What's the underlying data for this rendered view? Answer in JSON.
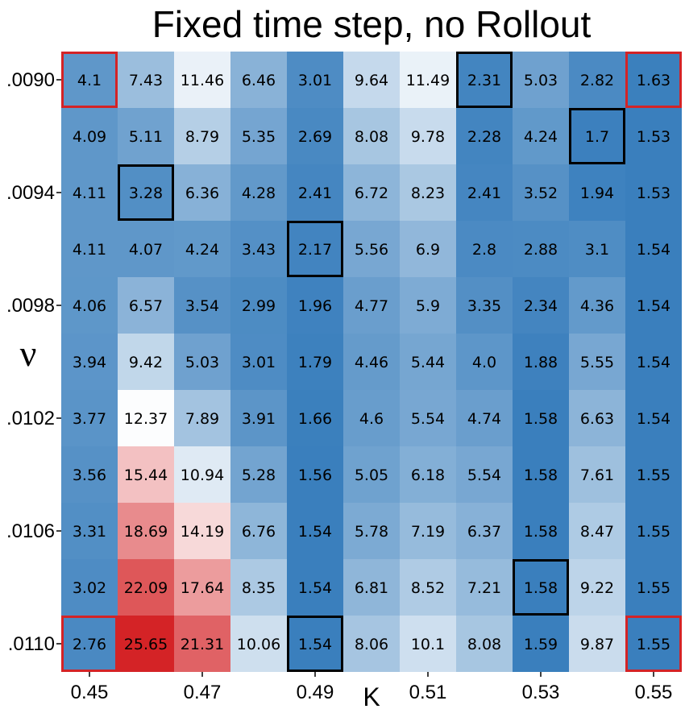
{
  "chart_data": {
    "type": "heatmap",
    "title": "Fixed time step, no Rollout",
    "xlabel": "K",
    "ylabel": "ν",
    "x_values": [
      0.45,
      0.46,
      0.47,
      0.48,
      0.49,
      0.5,
      0.51,
      0.52,
      0.53,
      0.54,
      0.55
    ],
    "y_values": [
      0.009,
      0.0092,
      0.0094,
      0.0096,
      0.0098,
      0.01,
      0.0102,
      0.0104,
      0.0106,
      0.0108,
      0.011
    ],
    "x_tick_labels": [
      "0.45",
      "0.47",
      "0.49",
      "0.51",
      "0.53",
      "0.55"
    ],
    "y_tick_labels": [
      ".0090",
      ".0094",
      ".0098",
      ".0102",
      ".0106",
      ".0110"
    ],
    "values": [
      [
        4.1,
        7.43,
        11.46,
        6.46,
        3.01,
        9.64,
        11.49,
        2.31,
        5.03,
        2.82,
        1.63
      ],
      [
        4.09,
        5.11,
        8.79,
        5.35,
        2.69,
        8.08,
        9.78,
        2.28,
        4.24,
        1.7,
        1.53
      ],
      [
        4.11,
        3.28,
        6.36,
        4.28,
        2.41,
        6.72,
        8.23,
        2.41,
        3.52,
        1.94,
        1.53
      ],
      [
        4.11,
        4.07,
        4.24,
        3.43,
        2.17,
        5.56,
        6.9,
        2.8,
        2.88,
        3.1,
        1.54
      ],
      [
        4.06,
        6.57,
        3.54,
        2.99,
        1.96,
        4.77,
        5.9,
        3.35,
        2.34,
        4.36,
        1.54
      ],
      [
        3.94,
        9.42,
        5.03,
        3.01,
        1.79,
        4.46,
        5.44,
        4.0,
        1.88,
        5.55,
        1.54
      ],
      [
        3.77,
        12.37,
        7.89,
        3.91,
        1.66,
        4.6,
        5.54,
        4.74,
        1.58,
        6.63,
        1.54
      ],
      [
        3.56,
        15.44,
        10.94,
        5.28,
        1.56,
        5.05,
        6.18,
        5.54,
        1.58,
        7.61,
        1.55
      ],
      [
        3.31,
        18.69,
        14.19,
        6.76,
        1.54,
        5.78,
        7.19,
        6.37,
        1.58,
        8.47,
        1.55
      ],
      [
        3.02,
        22.09,
        17.64,
        8.35,
        1.54,
        6.81,
        8.52,
        7.21,
        1.58,
        9.22,
        1.55
      ],
      [
        2.76,
        25.65,
        21.31,
        10.06,
        1.54,
        8.06,
        10.1,
        8.08,
        1.59,
        9.87,
        1.55
      ]
    ],
    "value_labels": [
      [
        "4.1",
        "7.43",
        "11.46",
        "6.46",
        "3.01",
        "9.64",
        "11.49",
        "2.31",
        "5.03",
        "2.82",
        "1.63"
      ],
      [
        "4.09",
        "5.11",
        "8.79",
        "5.35",
        "2.69",
        "8.08",
        "9.78",
        "2.28",
        "4.24",
        "1.7",
        "1.53"
      ],
      [
        "4.11",
        "3.28",
        "6.36",
        "4.28",
        "2.41",
        "6.72",
        "8.23",
        "2.41",
        "3.52",
        "1.94",
        "1.53"
      ],
      [
        "4.11",
        "4.07",
        "4.24",
        "3.43",
        "2.17",
        "5.56",
        "6.9",
        "2.8",
        "2.88",
        "3.1",
        "1.54"
      ],
      [
        "4.06",
        "6.57",
        "3.54",
        "2.99",
        "1.96",
        "4.77",
        "5.9",
        "3.35",
        "2.34",
        "4.36",
        "1.54"
      ],
      [
        "3.94",
        "9.42",
        "5.03",
        "3.01",
        "1.79",
        "4.46",
        "5.44",
        "4.0",
        "1.88",
        "5.55",
        "1.54"
      ],
      [
        "3.77",
        "12.37",
        "7.89",
        "3.91",
        "1.66",
        "4.6",
        "5.54",
        "4.74",
        "1.58",
        "6.63",
        "1.54"
      ],
      [
        "3.56",
        "15.44",
        "10.94",
        "5.28",
        "1.56",
        "5.05",
        "6.18",
        "5.54",
        "1.58",
        "7.61",
        "1.55"
      ],
      [
        "3.31",
        "18.69",
        "14.19",
        "6.76",
        "1.54",
        "5.78",
        "7.19",
        "6.37",
        "1.58",
        "8.47",
        "1.55"
      ],
      [
        "3.02",
        "22.09",
        "17.64",
        "8.35",
        "1.54",
        "6.81",
        "8.52",
        "7.21",
        "1.58",
        "9.22",
        "1.55"
      ],
      [
        "2.76",
        "25.65",
        "21.31",
        "10.06",
        "1.54",
        "8.06",
        "10.1",
        "8.08",
        "1.59",
        "9.87",
        "1.55"
      ]
    ],
    "colormap": {
      "type": "diverging",
      "low_color": "#3a7fbd",
      "mid_color": "#ffffff",
      "high_color": "#d42326",
      "mid_value": 12.5
    },
    "highlighted_cells": {
      "black": [
        [
          0,
          7
        ],
        [
          1,
          9
        ],
        [
          2,
          1
        ],
        [
          3,
          4
        ],
        [
          9,
          8
        ],
        [
          10,
          4
        ]
      ],
      "red": [
        [
          0,
          0
        ],
        [
          0,
          10
        ],
        [
          10,
          0
        ],
        [
          10,
          10
        ]
      ]
    },
    "highlight_colors": {
      "black": "#000000",
      "red": "#d42326"
    },
    "grid": false
  }
}
